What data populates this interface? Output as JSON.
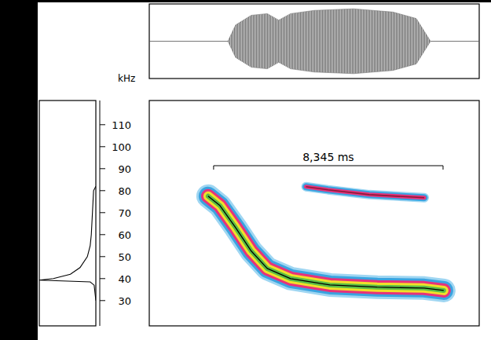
{
  "chart_data": {
    "type": "spectrogram",
    "y_label": "kHz",
    "xlim": [
      0,
      12
    ],
    "ylim": [
      18.5,
      121
    ],
    "yticks": [
      30,
      40,
      50,
      60,
      70,
      80,
      90,
      100,
      110
    ],
    "tick_labels": "y",
    "series": [
      {
        "color": "#000000",
        "x": [
          2.14,
          2.57,
          3.14,
          3.71,
          4.29,
          5.14,
          6.57,
          8.29,
          10.0,
          10.71
        ],
        "values": [
          77.5,
          73.2,
          63.2,
          52.5,
          44.6,
          40.0,
          37.1,
          36.1,
          35.7,
          34.6
        ]
      },
      {
        "color": "#8b1a3a",
        "x": [
          5.7,
          6.5,
          8.0,
          10.0
        ],
        "values": [
          81.8,
          80.4,
          78.2,
          76.8
        ]
      }
    ],
    "spectrum": {
      "xlim": [
        0,
        1
      ],
      "frequency": [
        30,
        37,
        38.5,
        39.3,
        40,
        42,
        45,
        50,
        55,
        60,
        70,
        75,
        80,
        82
      ],
      "amplitude": [
        0.0,
        0.03,
        0.1,
        1.0,
        0.75,
        0.45,
        0.28,
        0.15,
        0.1,
        0.08,
        0.06,
        0.05,
        0.04,
        0.0
      ]
    },
    "waveform": {
      "ylim": [
        -1.15,
        1.15
      ],
      "x": [
        2.86,
        3.14,
        3.71,
        4.29,
        4.71,
        5.14,
        6.0,
        7.43,
        8.86,
        9.71,
        10.23
      ],
      "values": [
        0.0,
        0.5,
        0.8,
        0.85,
        0.65,
        0.85,
        0.95,
        1.0,
        0.9,
        0.7,
        0.0
      ]
    },
    "annotation": {
      "text": "8,345 ms",
      "x": [
        2.34,
        10.685
      ]
    }
  }
}
